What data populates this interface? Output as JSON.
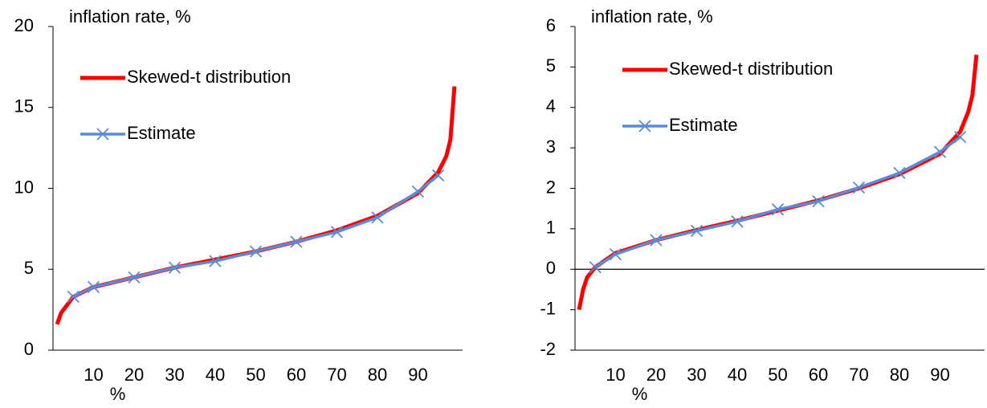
{
  "chart_data": [
    {
      "type": "line",
      "ylabel": "inflation rate, %",
      "xlabel": "%",
      "xlim": [
        0,
        101
      ],
      "xticks": [
        10,
        20,
        30,
        40,
        50,
        60,
        70,
        80,
        90
      ],
      "ylim": [
        0,
        20
      ],
      "yticks": [
        0,
        5,
        10,
        15,
        20
      ],
      "series": [
        {
          "name": "Skewed-t distribution",
          "color": "#ff0000",
          "x": [
            1,
            2,
            5,
            10,
            20,
            30,
            40,
            50,
            60,
            70,
            80,
            90,
            95,
            97,
            98,
            99
          ],
          "values": [
            1.6,
            2.3,
            3.3,
            3.9,
            4.5,
            5.1,
            5.6,
            6.1,
            6.7,
            7.4,
            8.3,
            9.7,
            11,
            12,
            13,
            16.3
          ]
        },
        {
          "name": "Estimate",
          "color": "#5b8bd6",
          "marker": "x",
          "x": [
            5,
            10,
            20,
            30,
            40,
            50,
            60,
            70,
            80,
            90,
            95
          ],
          "values": [
            3.3,
            3.9,
            4.5,
            5.1,
            5.5,
            6.1,
            6.7,
            7.3,
            8.2,
            9.8,
            10.8
          ]
        }
      ]
    },
    {
      "type": "line",
      "ylabel": "inflation rate, %",
      "xlabel": "%",
      "xlim": [
        0,
        101
      ],
      "xticks": [
        10,
        20,
        30,
        40,
        50,
        60,
        70,
        80,
        90
      ],
      "ylim": [
        -2,
        6
      ],
      "yticks": [
        -2,
        -1,
        0,
        1,
        2,
        3,
        4,
        5,
        6
      ],
      "series": [
        {
          "name": "Skewed-t distribution",
          "color": "#ff0000",
          "x": [
            1,
            2,
            3,
            5,
            10,
            20,
            30,
            40,
            50,
            60,
            70,
            80,
            90,
            95,
            97,
            98,
            99
          ],
          "values": [
            -1.0,
            -0.5,
            -0.2,
            0.05,
            0.4,
            0.72,
            0.97,
            1.2,
            1.45,
            1.7,
            2.0,
            2.35,
            2.85,
            3.4,
            3.9,
            4.3,
            5.3
          ]
        },
        {
          "name": "Estimate",
          "color": "#5b8bd6",
          "marker": "x",
          "x": [
            5,
            10,
            20,
            30,
            40,
            50,
            60,
            70,
            80,
            90,
            95
          ],
          "values": [
            0.05,
            0.37,
            0.72,
            0.95,
            1.18,
            1.48,
            1.68,
            2.02,
            2.38,
            2.9,
            3.27
          ]
        }
      ]
    }
  ]
}
